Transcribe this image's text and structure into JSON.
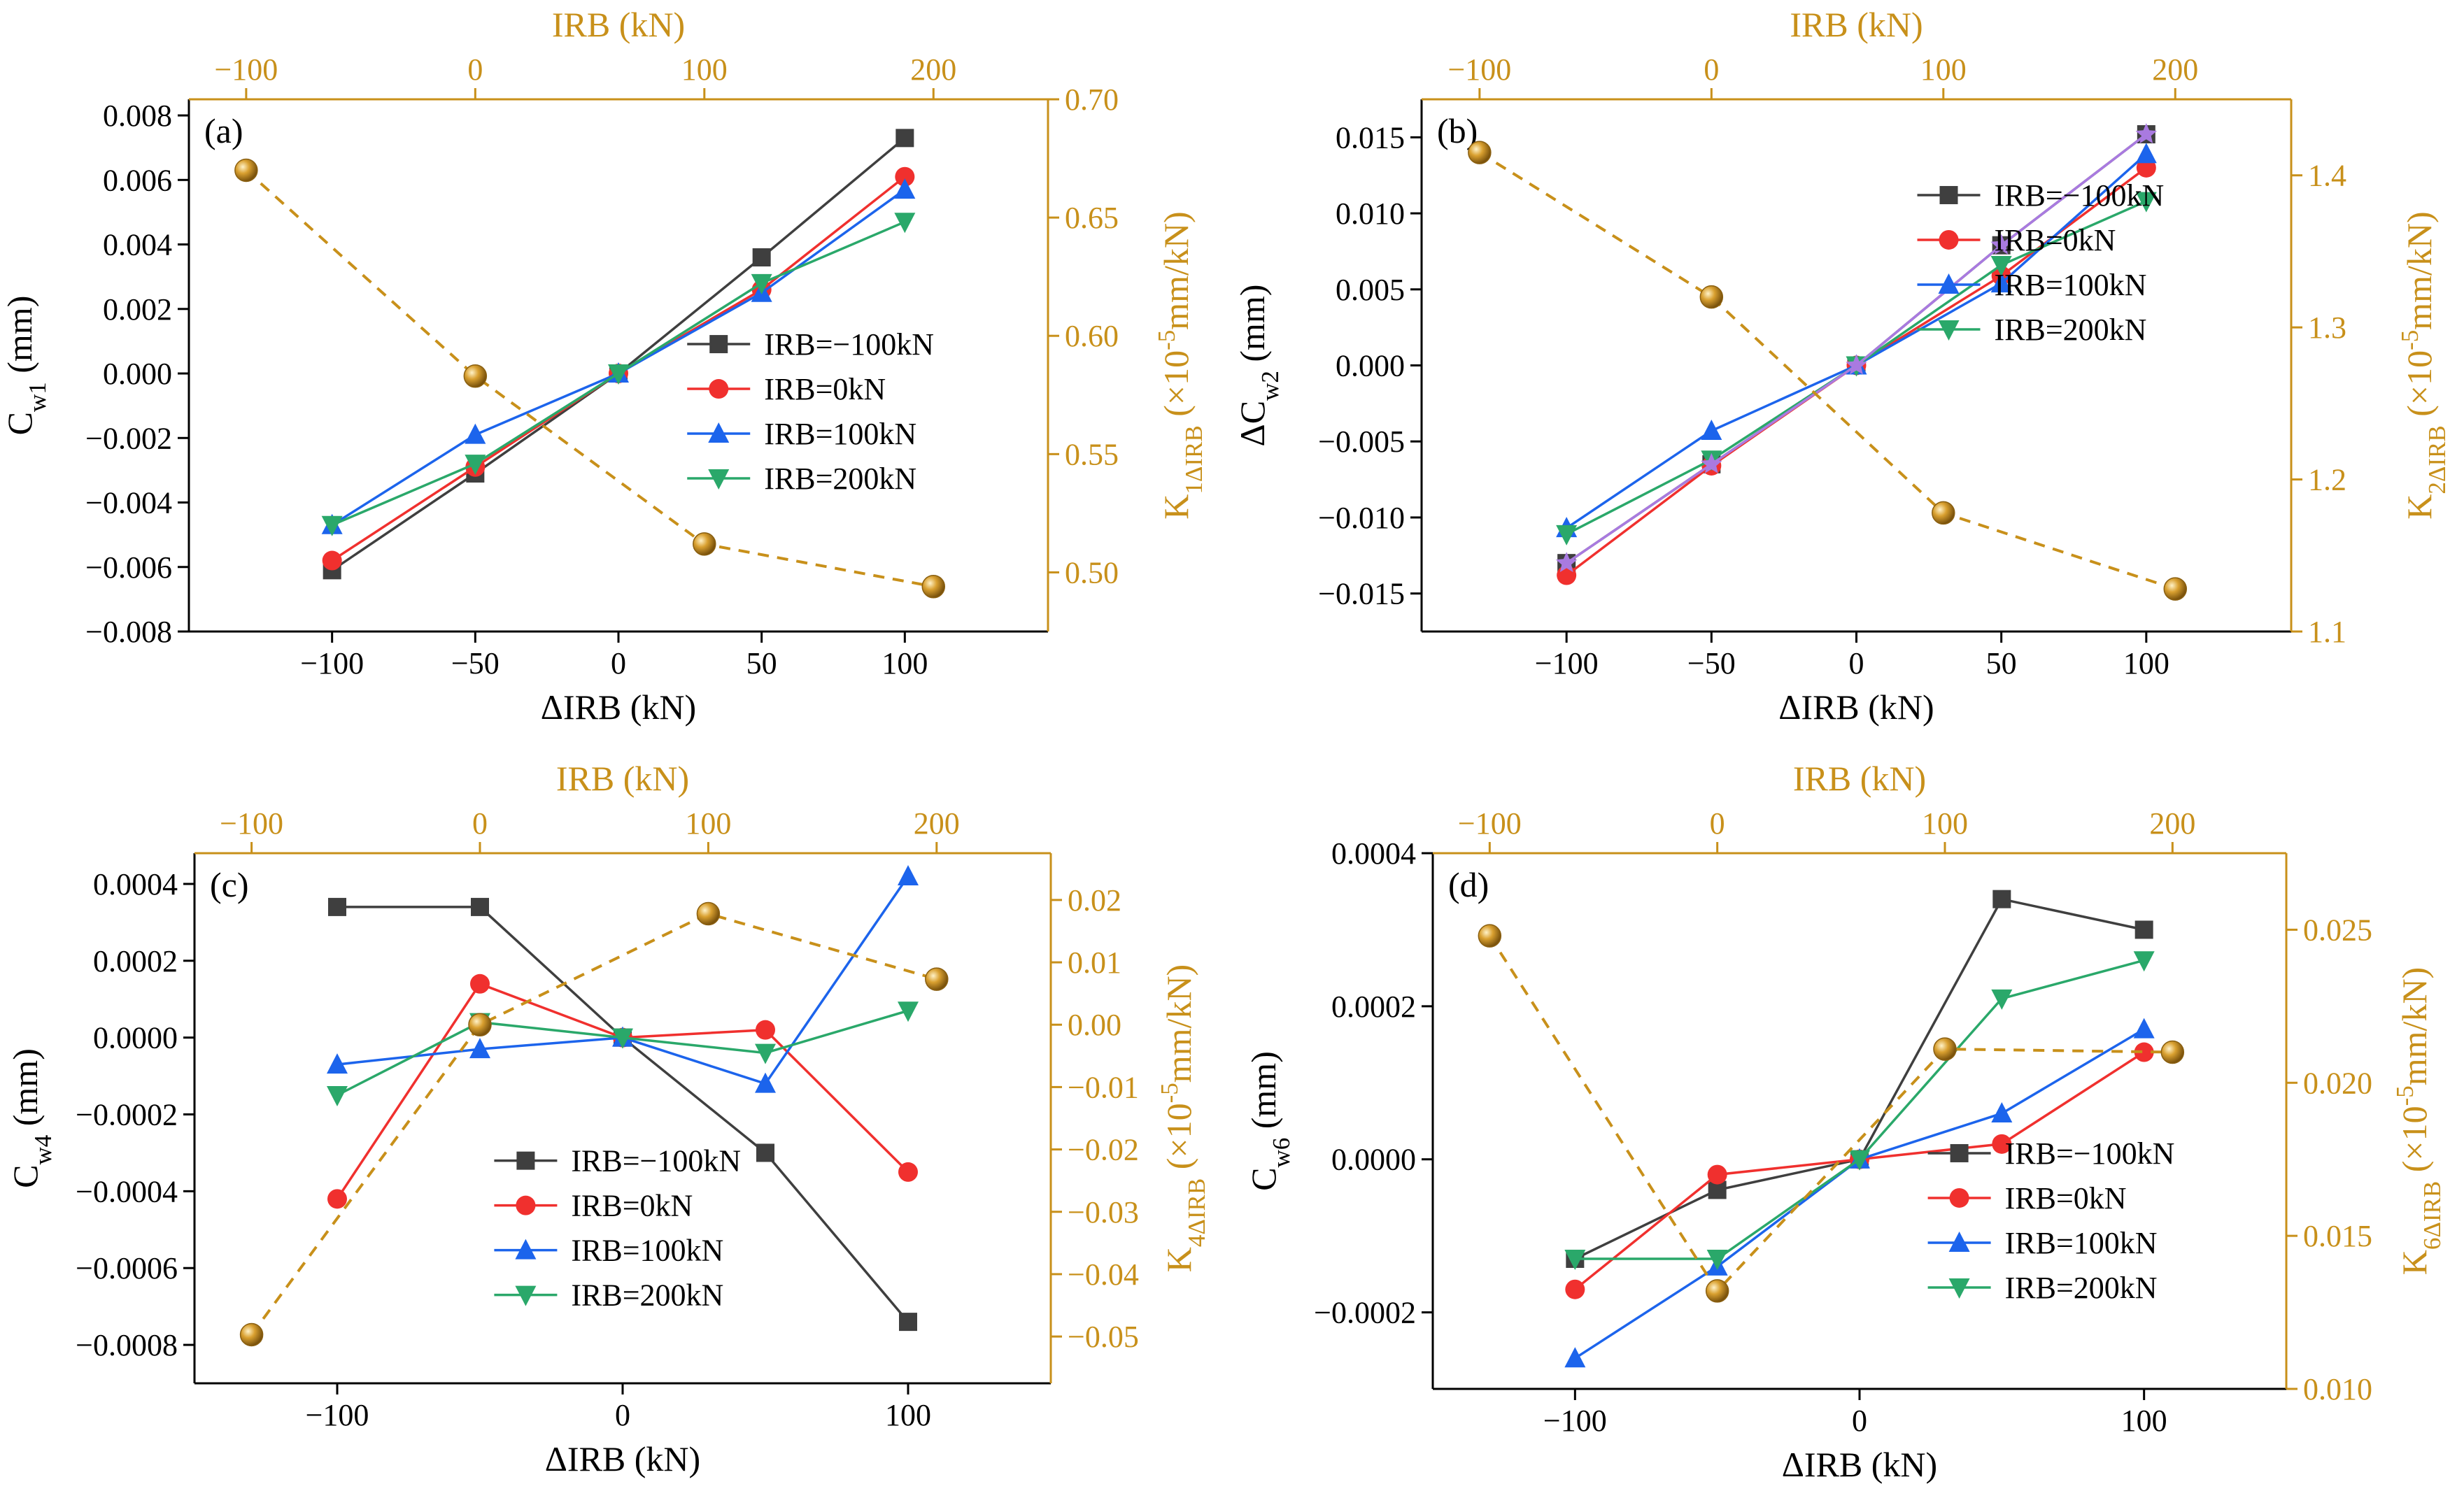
{
  "colors": {
    "axis": "#000000",
    "orange": "#C8901A",
    "irb_m100": "#3F3F3F",
    "irb_0": "#F0302E",
    "irb_100": "#1C64EC",
    "irb_200": "#2AA86A",
    "extra": "#A97AE0"
  },
  "chart_data": [
    {
      "type": "line",
      "panel_label": "(a)",
      "xlabel": "ΔIRB (kN)",
      "ylabel": "C_w1 (mm)",
      "xlim": [
        -150,
        150
      ],
      "xticks": [
        -100,
        -50,
        0,
        50,
        100
      ],
      "xtick_labels": [
        "−100",
        "−50",
        "0",
        "50",
        "100"
      ],
      "ylim": [
        -0.008,
        0.0085
      ],
      "yticks": [
        -0.008,
        -0.006,
        -0.004,
        -0.002,
        0.0,
        0.002,
        0.004,
        0.006,
        0.008
      ],
      "ytick_labels": [
        "−0.008",
        "−0.006",
        "−0.004",
        "−0.002",
        "0.000",
        "0.002",
        "0.004",
        "0.006",
        "0.008"
      ],
      "top_xlabel": "IRB (kN)",
      "top_xlim": [
        -125,
        250
      ],
      "top_xticks": [
        -100,
        0,
        100,
        200
      ],
      "top_xtick_labels": [
        "−100",
        "0",
        "100",
        "200"
      ],
      "right_ylabel": "K_1ΔIRB (×10^-5mm/kN)",
      "right_ylim": [
        0.475,
        0.7
      ],
      "right_yticks": [
        0.5,
        0.55,
        0.6,
        0.65,
        0.7
      ],
      "right_ytick_labels": [
        "0.50",
        "0.55",
        "0.60",
        "0.65",
        "0.70"
      ],
      "legend_position": "center-right",
      "x": [
        -100,
        -50,
        0,
        50,
        100
      ],
      "series": [
        {
          "name": "IRB=−100kN",
          "marker": "square",
          "color_key": "irb_m100",
          "values": [
            -0.0061,
            -0.0031,
            0.0,
            0.0036,
            0.0073
          ]
        },
        {
          "name": "IRB=0kN",
          "marker": "circle",
          "color_key": "irb_0",
          "values": [
            -0.0058,
            -0.0029,
            0.0,
            0.0026,
            0.0061
          ]
        },
        {
          "name": "IRB=100kN",
          "marker": "triangle-up",
          "color_key": "irb_100",
          "values": [
            -0.0047,
            -0.0019,
            0.0,
            0.0025,
            0.0057
          ]
        },
        {
          "name": "IRB=200kN",
          "marker": "triangle-down",
          "color_key": "irb_200",
          "values": [
            -0.0047,
            -0.0028,
            0.0,
            0.0028,
            0.0047
          ]
        }
      ],
      "k_series": {
        "irb": [
          -100,
          0,
          100,
          200
        ],
        "values": [
          0.67,
          0.583,
          0.512,
          0.494
        ]
      }
    },
    {
      "type": "line",
      "panel_label": "(b)",
      "xlabel": "ΔIRB (kN)",
      "ylabel": "ΔC_w2 (mm)",
      "xlim": [
        -150,
        150
      ],
      "xticks": [
        -100,
        -50,
        0,
        50,
        100
      ],
      "xtick_labels": [
        "−100",
        "−50",
        "0",
        "50",
        "100"
      ],
      "ylim": [
        -0.0175,
        0.0175
      ],
      "yticks": [
        -0.015,
        -0.01,
        -0.005,
        0.0,
        0.005,
        0.01,
        0.015
      ],
      "ytick_labels": [
        "−0.015",
        "−0.010",
        "−0.005",
        "0.000",
        "0.005",
        "0.010",
        "0.015"
      ],
      "top_xlabel": "IRB (kN)",
      "top_xlim": [
        -125,
        250
      ],
      "top_xticks": [
        -100,
        0,
        100,
        200
      ],
      "top_xtick_labels": [
        "−100",
        "0",
        "100",
        "200"
      ],
      "right_ylabel": "K_2ΔIRB (×10^-5mm/kN)",
      "right_ylim": [
        1.1,
        1.45
      ],
      "right_yticks": [
        1.1,
        1.2,
        1.3,
        1.4
      ],
      "right_ytick_labels": [
        "1.1",
        "1.2",
        "1.3",
        "1.4"
      ],
      "legend_position": "center-right",
      "x": [
        -100,
        -50,
        0,
        50,
        100
      ],
      "series": [
        {
          "name": "IRB=−100kN",
          "marker": "square",
          "color_key": "irb_m100",
          "values": [
            -0.013,
            -0.0065,
            0.0,
            0.0079,
            0.0152
          ]
        },
        {
          "name": "IRB=0kN",
          "marker": "circle",
          "color_key": "irb_0",
          "values": [
            -0.0138,
            -0.0066,
            0.0,
            0.0059,
            0.013
          ]
        },
        {
          "name": "IRB=100kN",
          "marker": "triangle-up",
          "color_key": "irb_100",
          "values": [
            -0.0107,
            -0.0043,
            0.0,
            0.0054,
            0.0139
          ]
        },
        {
          "name": "IRB=200kN",
          "marker": "triangle-down",
          "color_key": "irb_200",
          "values": [
            -0.0111,
            -0.0062,
            0.0,
            0.0066,
            0.0108
          ]
        },
        {
          "name": "",
          "marker": "star",
          "color_key": "extra",
          "values": [
            -0.013,
            -0.0065,
            0.0,
            0.0079,
            0.0152
          ]
        }
      ],
      "k_series": {
        "irb": [
          -100,
          0,
          100,
          200
        ],
        "values": [
          1.415,
          1.32,
          1.178,
          1.128
        ]
      }
    },
    {
      "type": "line",
      "panel_label": "(c)",
      "xlabel": "ΔIRB (kN)",
      "ylabel": "C_w4 (mm)",
      "xlim": [
        -150,
        150
      ],
      "xticks": [
        -100,
        0,
        100
      ],
      "xtick_labels": [
        "−100",
        "0",
        "100"
      ],
      "ylim": [
        -0.0009,
        0.00048
      ],
      "yticks": [
        -0.0008,
        -0.0006,
        -0.0004,
        -0.0002,
        0.0,
        0.0002,
        0.0004
      ],
      "ytick_labels": [
        "−0.0008",
        "−0.0006",
        "−0.0004",
        "−0.0002",
        "0.0000",
        "0.0002",
        "0.0004"
      ],
      "top_xlabel": "IRB (kN)",
      "top_xlim": [
        -125,
        250
      ],
      "top_xticks": [
        -100,
        0,
        100,
        200
      ],
      "top_xtick_labels": [
        "−100",
        "0",
        "100",
        "200"
      ],
      "right_ylabel": "K_4ΔIRB (×10^-5mm/kN)",
      "right_ylim": [
        -0.0575,
        0.0275
      ],
      "right_yticks": [
        -0.05,
        -0.04,
        -0.03,
        -0.02,
        -0.01,
        0.0,
        0.01,
        0.02
      ],
      "right_ytick_labels": [
        "−0.05",
        "−0.04",
        "−0.03",
        "−0.02",
        "−0.01",
        "0.00",
        "0.01",
        "0.02"
      ],
      "legend_position": "bottom-center",
      "x": [
        -100,
        -50,
        0,
        50,
        100
      ],
      "series": [
        {
          "name": "IRB=−100kN",
          "marker": "square",
          "color_key": "irb_m100",
          "values": [
            0.00034,
            0.00034,
            0.0,
            -0.0003,
            -0.00074
          ]
        },
        {
          "name": "IRB=0kN",
          "marker": "circle",
          "color_key": "irb_0",
          "values": [
            -0.00042,
            0.00014,
            0.0,
            2e-05,
            -0.00035
          ]
        },
        {
          "name": "IRB=100kN",
          "marker": "triangle-up",
          "color_key": "irb_100",
          "values": [
            -7e-05,
            -3e-05,
            0.0,
            -0.00012,
            0.00042
          ]
        },
        {
          "name": "IRB=200kN",
          "marker": "triangle-down",
          "color_key": "irb_200",
          "values": [
            -0.00015,
            4e-05,
            0.0,
            -4e-05,
            7e-05
          ]
        }
      ],
      "k_series": {
        "irb": [
          -100,
          0,
          100,
          200
        ],
        "values": [
          -0.0497,
          0.0,
          0.0178,
          0.0073
        ]
      }
    },
    {
      "type": "line",
      "panel_label": "(d)",
      "xlabel": "ΔIRB (kN)",
      "ylabel": "C_w6 (mm)",
      "xlim": [
        -150,
        150
      ],
      "xticks": [
        -100,
        0,
        100
      ],
      "xtick_labels": [
        "−100",
        "0",
        "100"
      ],
      "ylim": [
        -0.0003,
        0.0004
      ],
      "yticks": [
        -0.0002,
        0.0,
        0.0002,
        0.0004
      ],
      "ytick_labels": [
        "−0.0002",
        "0.0000",
        "0.0002",
        "0.0004"
      ],
      "top_xlabel": "IRB (kN)",
      "top_xlim": [
        -125,
        250
      ],
      "top_xticks": [
        -100,
        0,
        100,
        200
      ],
      "top_xtick_labels": [
        "−100",
        "0",
        "100",
        "200"
      ],
      "right_ylabel": "K_6ΔIRB (×10^-5mm/kN)",
      "right_ylim": [
        0.01,
        0.0275
      ],
      "right_yticks": [
        0.01,
        0.015,
        0.02,
        0.025
      ],
      "right_ytick_labels": [
        "0.010",
        "0.015",
        "0.020",
        "0.025"
      ],
      "legend_position": "bottom-right",
      "x": [
        -100,
        -50,
        0,
        50,
        100
      ],
      "series": [
        {
          "name": "IRB=−100kN",
          "marker": "square",
          "color_key": "irb_m100",
          "values": [
            -0.00013,
            -4e-05,
            0.0,
            0.00034,
            0.0003
          ]
        },
        {
          "name": "IRB=0kN",
          "marker": "circle",
          "color_key": "irb_0",
          "values": [
            -0.00017,
            -2e-05,
            0.0,
            2e-05,
            0.00014
          ]
        },
        {
          "name": "IRB=100kN",
          "marker": "triangle-up",
          "color_key": "irb_100",
          "values": [
            -0.00026,
            -0.00014,
            0.0,
            6e-05,
            0.00017
          ]
        },
        {
          "name": "IRB=200kN",
          "marker": "triangle-down",
          "color_key": "irb_200",
          "values": [
            -0.00013,
            -0.00013,
            0.0,
            0.00021,
            0.00026
          ]
        }
      ],
      "k_series": {
        "irb": [
          -100,
          0,
          100,
          200
        ],
        "values": [
          0.0248,
          0.0132,
          0.0211,
          0.021
        ]
      }
    }
  ]
}
